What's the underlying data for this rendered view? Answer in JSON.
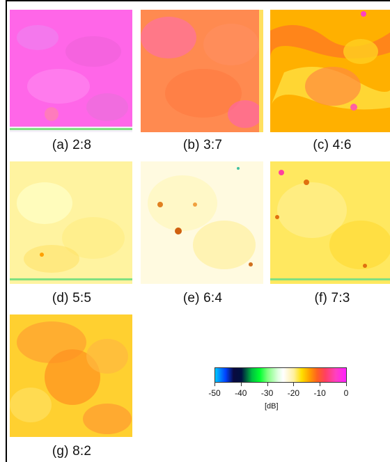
{
  "panels": [
    {
      "caption": "(a) 2:8"
    },
    {
      "caption": "(b) 3:7"
    },
    {
      "caption": "(c) 4:6"
    },
    {
      "caption": "(d) 5:5"
    },
    {
      "caption": "(e) 6:4"
    },
    {
      "caption": "(f) 7:3"
    },
    {
      "caption": "(g) 8:2"
    }
  ],
  "colorbar": {
    "ticks": [
      "-50",
      "-40",
      "-30",
      "-20",
      "-10",
      "0"
    ],
    "unit": "[dB]"
  }
}
